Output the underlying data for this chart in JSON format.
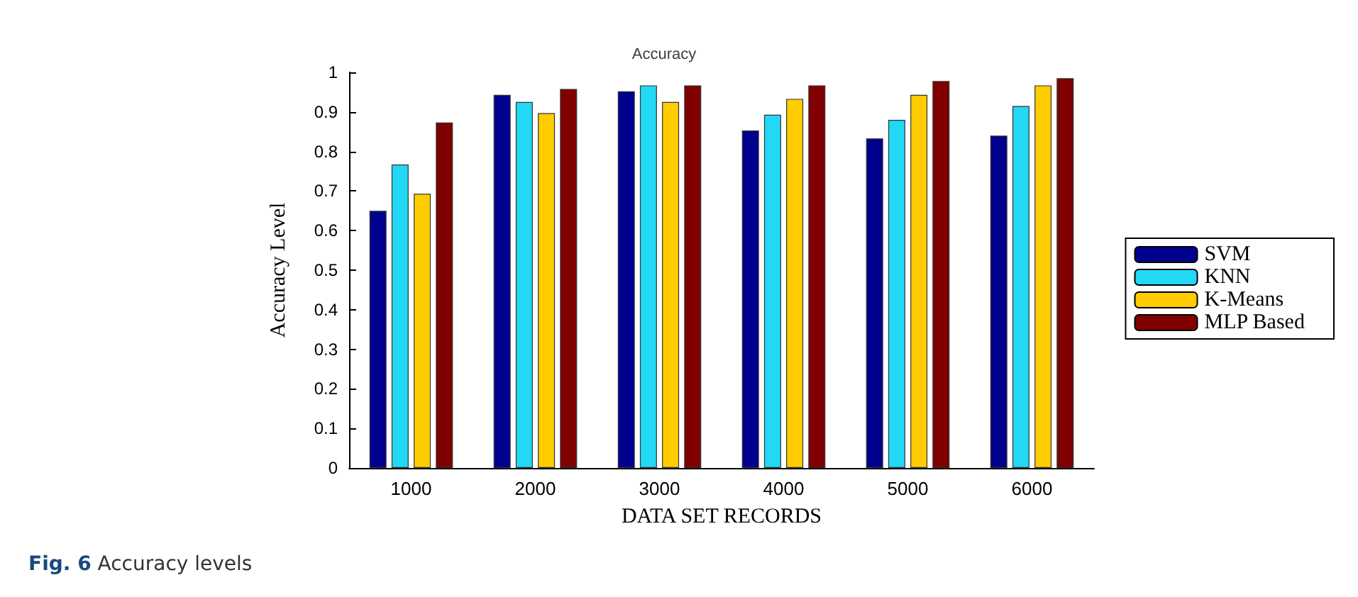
{
  "chart_data": {
    "type": "bar",
    "title": "Accuracy",
    "xlabel": "DATA SET RECORDS",
    "ylabel": "Accuracy Level",
    "annotations": [
      "Fig. 6 Accuracy levels"
    ],
    "categories": [
      "1000",
      "2000",
      "3000",
      "4000",
      "5000",
      "6000"
    ],
    "series": [
      {
        "name": "SVM",
        "color": "#00008f",
        "values": [
          0.65,
          0.943,
          0.952,
          0.853,
          0.833,
          0.84
        ]
      },
      {
        "name": "KNN",
        "color": "#22d8f5",
        "values": [
          0.767,
          0.925,
          0.967,
          0.893,
          0.88,
          0.915
        ]
      },
      {
        "name": "K-Means",
        "color": "#ffcc00",
        "values": [
          0.693,
          0.897,
          0.925,
          0.933,
          0.943,
          0.967
        ]
      },
      {
        "name": "MLP Based",
        "color": "#800000",
        "values": [
          0.873,
          0.958,
          0.967,
          0.967,
          0.978,
          0.985
        ]
      }
    ],
    "ylim": [
      0,
      1
    ],
    "yticks": [
      0,
      0.1,
      0.2,
      0.3,
      0.4,
      0.5,
      0.6,
      0.7,
      0.8,
      0.9,
      1
    ],
    "grid": false,
    "legend": "right"
  }
}
